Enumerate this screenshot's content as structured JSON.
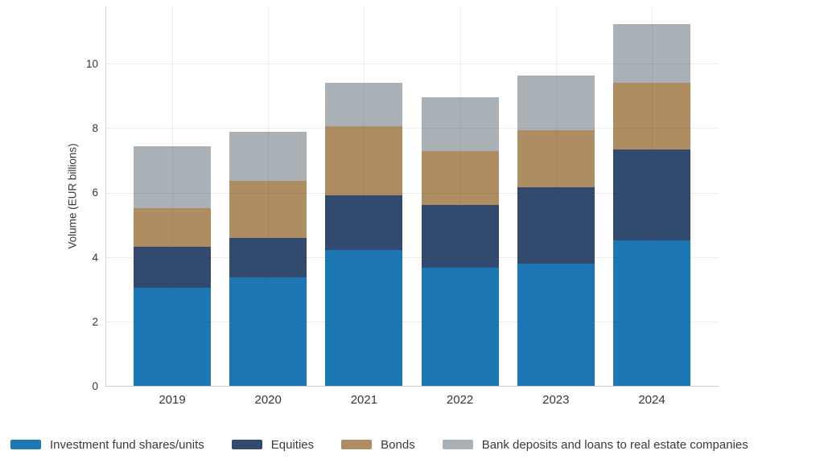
{
  "chart_data": {
    "type": "bar",
    "stacked": true,
    "title": "",
    "xlabel": "",
    "ylabel": "Volume (EUR billions)",
    "categories": [
      "2019",
      "2020",
      "2021",
      "2022",
      "2023",
      "2024"
    ],
    "series": [
      {
        "name": "Investment fund shares/units",
        "color": "#1c77b4",
        "values": [
          3.08,
          3.39,
          4.23,
          3.7,
          3.81,
          4.55
        ]
      },
      {
        "name": "Equities",
        "color": "#314a6e",
        "values": [
          1.25,
          1.23,
          1.72,
          1.95,
          2.38,
          2.8
        ]
      },
      {
        "name": "Bonds",
        "color": "#ae8d62",
        "values": [
          1.2,
          1.76,
          2.13,
          1.65,
          1.76,
          2.09
        ]
      },
      {
        "name": "Bank deposits and loans to real estate companies",
        "color": "#aab1b6",
        "values": [
          1.93,
          1.53,
          1.35,
          1.68,
          1.7,
          1.8
        ]
      }
    ],
    "totals": [
      7.46,
      7.91,
      9.43,
      8.98,
      9.65,
      11.24
    ],
    "yticks": [
      0,
      2,
      4,
      6,
      8,
      10
    ],
    "ylim": [
      0,
      11.8
    ],
    "grid": true,
    "legend_position": "bottom"
  }
}
